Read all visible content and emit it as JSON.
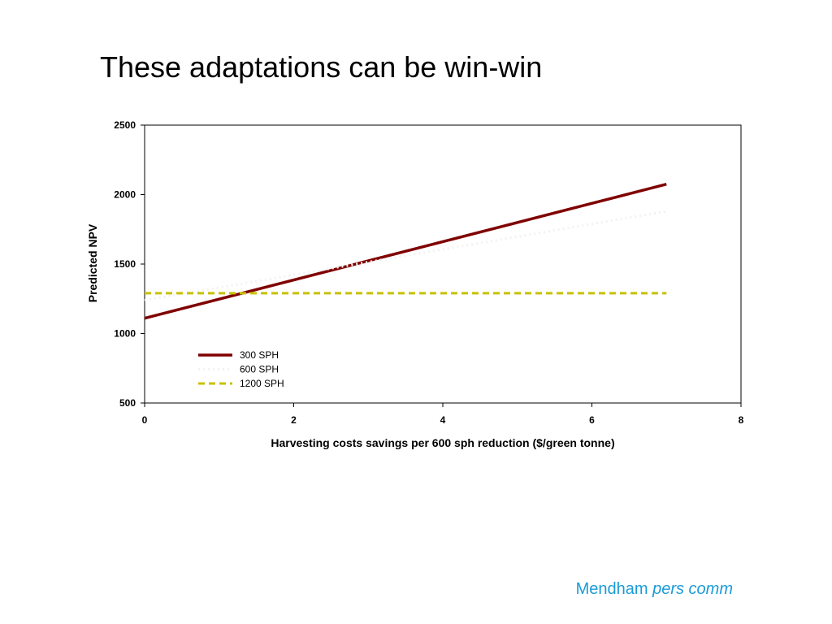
{
  "slide": {
    "title": "These adaptations can be win-win",
    "citation_name": "Mendham",
    "citation_note": "pers comm",
    "citation_color": "#1a9bd7"
  },
  "chart_data": {
    "type": "line",
    "title": "",
    "xlabel": "Harvesting costs savings per 600 sph reduction ($/green tonne)",
    "ylabel": "Predicted NPV",
    "xlim": [
      0,
      8
    ],
    "ylim": [
      500,
      2500
    ],
    "xticks": [
      0,
      2,
      4,
      6,
      8
    ],
    "yticks": [
      500,
      1000,
      1500,
      2000,
      2500
    ],
    "grid": false,
    "legend_position": "lower-left inside plot",
    "series": [
      {
        "name": "300 SPH",
        "color": "#800000",
        "style": "solid",
        "x": [
          0,
          7
        ],
        "y": [
          1110,
          2075
        ]
      },
      {
        "name": "600 SPH",
        "color": "#f2f2f2",
        "style": "dotted",
        "x": [
          0,
          7
        ],
        "y": [
          1240,
          1880
        ]
      },
      {
        "name": "1200 SPH",
        "color": "#c8c000",
        "style": "dashed",
        "x": [
          0,
          7
        ],
        "y": [
          1290,
          1290
        ]
      }
    ]
  }
}
